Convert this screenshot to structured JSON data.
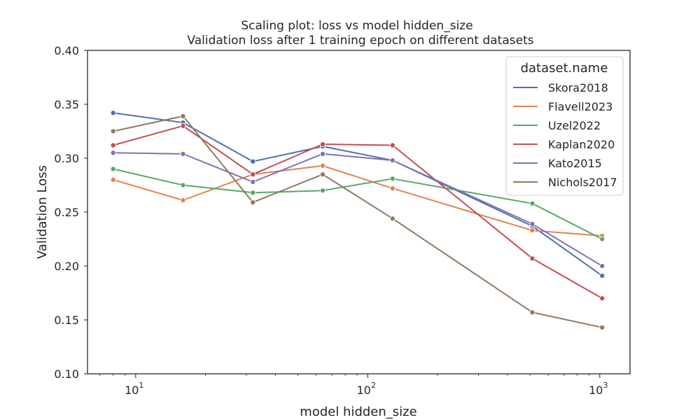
{
  "chart_data": {
    "type": "line",
    "title": "Scaling plot: loss vs model hidden_size",
    "subtitle": "Validation loss after 1 training epoch on different datasets",
    "xlabel": "model hidden_size",
    "ylabel": "Validation Loss",
    "xscale": "log",
    "xlim": [
      6.2,
      1350
    ],
    "ylim": [
      0.1,
      0.4
    ],
    "xticks": [
      {
        "value": 10,
        "base": "10",
        "exp": "1"
      },
      {
        "value": 100,
        "base": "10",
        "exp": "2"
      },
      {
        "value": 1000,
        "base": "10",
        "exp": "3"
      }
    ],
    "yticks": [
      "0.10",
      "0.15",
      "0.20",
      "0.25",
      "0.30",
      "0.35",
      "0.40"
    ],
    "grid": false,
    "legend": {
      "title": "dataset.name",
      "position": "top-right"
    },
    "x": [
      8,
      16,
      32,
      64,
      128,
      512,
      1024
    ],
    "series": [
      {
        "name": "Skora2018",
        "color": "#4c72b0",
        "values": [
          0.342,
          0.333,
          0.297,
          0.311,
          0.298,
          0.237,
          0.191
        ]
      },
      {
        "name": "Flavell2023",
        "color": "#dd8452",
        "values": [
          0.28,
          0.261,
          0.285,
          0.293,
          0.272,
          0.233,
          0.228
        ]
      },
      {
        "name": "Uzel2022",
        "color": "#55a868",
        "values": [
          0.29,
          0.275,
          0.268,
          0.27,
          0.281,
          0.258,
          0.225
        ]
      },
      {
        "name": "Kaplan2020",
        "color": "#c44e52",
        "values": [
          0.312,
          0.33,
          0.285,
          0.313,
          0.312,
          0.207,
          0.17
        ]
      },
      {
        "name": "Kato2015",
        "color": "#8172b3",
        "values": [
          0.305,
          0.304,
          0.278,
          0.304,
          0.298,
          0.239,
          0.2
        ]
      },
      {
        "name": "Nichols2017",
        "color": "#937860",
        "values": [
          0.325,
          0.339,
          0.259,
          0.285,
          0.244,
          0.157,
          0.143
        ]
      }
    ]
  }
}
